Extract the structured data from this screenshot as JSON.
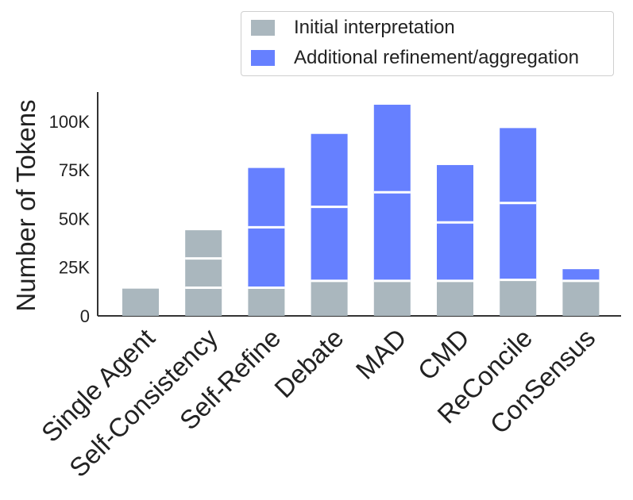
{
  "chart_data": {
    "type": "bar",
    "stacked": true,
    "title": "",
    "xlabel": "",
    "ylabel": "Number of Tokens",
    "ylim": [
      0,
      115000
    ],
    "yticks": [
      0,
      25000,
      50000,
      75000,
      100000
    ],
    "ytick_labels": [
      "0",
      "25K",
      "50K",
      "75K",
      "100K"
    ],
    "categories": [
      "Single Agent",
      "Self-Consistency",
      "Self-Refine",
      "Debate",
      "MAD",
      "CMD",
      "ReConcile",
      "ConSensus"
    ],
    "series": [
      {
        "name": "Initial interpretation",
        "color": "#aab7be",
        "segments": [
          [
            14000
          ],
          [
            14500,
            15000,
            14500
          ],
          [
            14500
          ],
          [
            18000
          ],
          [
            18000
          ],
          [
            18000
          ],
          [
            18500
          ],
          [
            18000
          ]
        ]
      },
      {
        "name": "Additional refinement/aggregation",
        "color": "#6680ff",
        "segments": [
          [],
          [],
          [
            31000,
            30500
          ],
          [
            38000,
            37500
          ],
          [
            45500,
            45000
          ],
          [
            30000,
            29500
          ],
          [
            39500,
            38500
          ],
          [
            6000
          ]
        ]
      }
    ],
    "totals": [
      14000,
      44000,
      76000,
      93500,
      108500,
      77500,
      96500,
      24000
    ],
    "legend_position": "top-right",
    "grid": false
  },
  "legend": {
    "items": [
      {
        "label": "Initial interpretation",
        "color": "#aab7be"
      },
      {
        "label": "Additional refinement/aggregation",
        "color": "#6680ff"
      }
    ]
  }
}
